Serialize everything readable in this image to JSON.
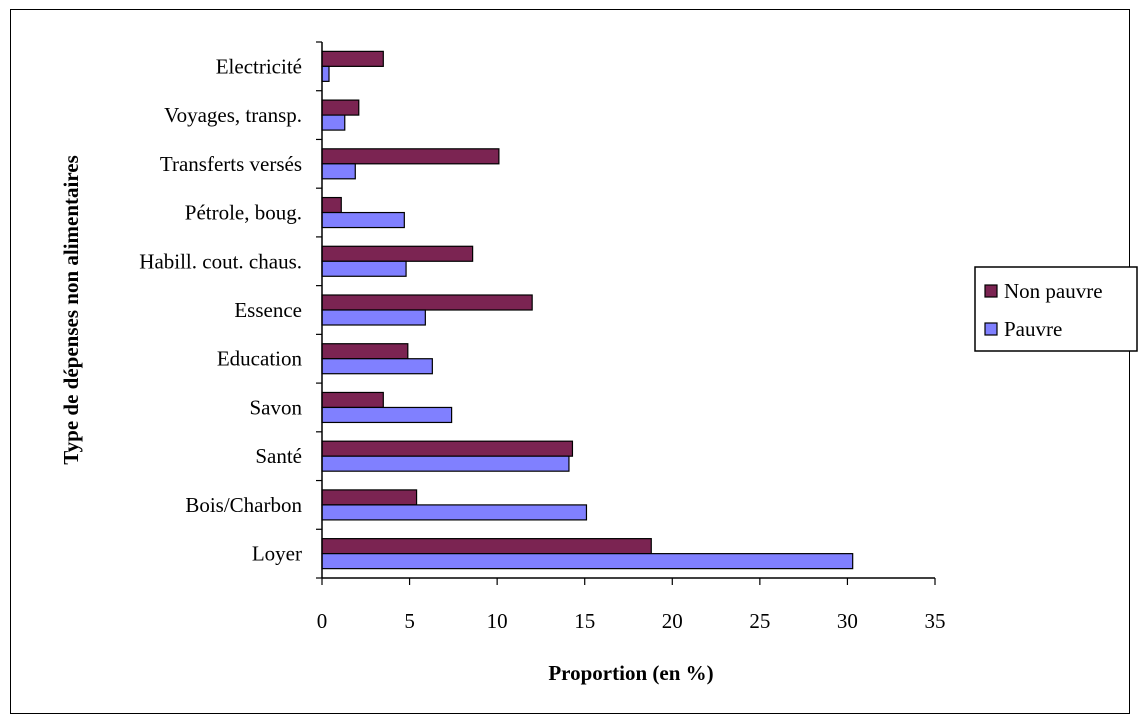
{
  "chart_data": {
    "type": "bar",
    "orientation": "horizontal",
    "categories": [
      "Loyer",
      "Bois/Charbon",
      "Santé",
      "Savon",
      "Education",
      "Essence",
      "Habill. cout. chaus.",
      "Pétrole, boug.",
      "Transferts versés",
      "Voyages, transp.",
      "Electricité"
    ],
    "series": [
      {
        "name": "Non pauvre",
        "color": "#7b2452",
        "values": [
          18.8,
          5.4,
          14.3,
          3.5,
          4.9,
          12.0,
          8.6,
          1.1,
          10.1,
          2.1,
          3.5
        ]
      },
      {
        "name": "Pauvre",
        "color": "#8080ff",
        "values": [
          30.3,
          15.1,
          14.1,
          7.4,
          6.3,
          5.9,
          4.8,
          4.7,
          1.9,
          1.3,
          0.4
        ]
      }
    ],
    "xlabel": "Proportion (en %)",
    "ylabel": "Type de dépenses non alimentaires",
    "xlim": [
      0,
      35
    ],
    "xticks": [
      0,
      5,
      10,
      15,
      20,
      25,
      30,
      35
    ],
    "grid": false,
    "legend_position": "right"
  }
}
